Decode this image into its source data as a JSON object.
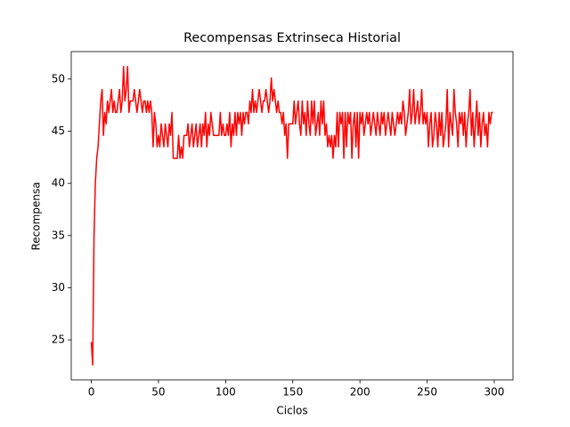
{
  "chart_data": {
    "type": "line",
    "title": "Recompensas Extrinseca Historial",
    "xlabel": "Ciclos",
    "ylabel": "Recompensa",
    "x": [
      0,
      1,
      2,
      3,
      4,
      5,
      6,
      7,
      8,
      9,
      10,
      11,
      12,
      13,
      14,
      15,
      16,
      17,
      18,
      19,
      20,
      21,
      22,
      23,
      24,
      25,
      26,
      27,
      28,
      29,
      30,
      31,
      32,
      33,
      34,
      35,
      36,
      37,
      38,
      39,
      40,
      41,
      42,
      43,
      44,
      45,
      46,
      47,
      48,
      49,
      50,
      51,
      52,
      53,
      54,
      55,
      56,
      57,
      58,
      59,
      60,
      61,
      62,
      63,
      64,
      65,
      66,
      67,
      68,
      69,
      70,
      71,
      72,
      73,
      74,
      75,
      76,
      77,
      78,
      79,
      80,
      81,
      82,
      83,
      84,
      85,
      86,
      87,
      88,
      89,
      90,
      91,
      92,
      93,
      94,
      95,
      96,
      97,
      98,
      99,
      100,
      101,
      102,
      103,
      104,
      105,
      106,
      107,
      108,
      109,
      110,
      111,
      112,
      113,
      114,
      115,
      116,
      117,
      118,
      119,
      120,
      121,
      122,
      123,
      124,
      125,
      126,
      127,
      128,
      129,
      130,
      131,
      132,
      133,
      134,
      135,
      136,
      137,
      138,
      139,
      140,
      141,
      142,
      143,
      144,
      145,
      146,
      147,
      148,
      149,
      150,
      151,
      152,
      153,
      154,
      155,
      156,
      157,
      158,
      159,
      160,
      161,
      162,
      163,
      164,
      165,
      166,
      167,
      168,
      169,
      170,
      171,
      172,
      173,
      174,
      175,
      176,
      177,
      178,
      179,
      180,
      181,
      182,
      183,
      184,
      185,
      186,
      187,
      188,
      189,
      190,
      191,
      192,
      193,
      194,
      195,
      196,
      197,
      198,
      199,
      200,
      201,
      202,
      203,
      204,
      205,
      206,
      207,
      208,
      209,
      210,
      211,
      212,
      213,
      214,
      215,
      216,
      217,
      218,
      219,
      220,
      221,
      222,
      223,
      224,
      225,
      226,
      227,
      228,
      229,
      230,
      231,
      232,
      233,
      234,
      235,
      236,
      237,
      238,
      239,
      240,
      241,
      242,
      243,
      244,
      245,
      246,
      247,
      248,
      249,
      250,
      251,
      252,
      253,
      254,
      255,
      256,
      257,
      258,
      259,
      260,
      261,
      262,
      263,
      264,
      265,
      266,
      267,
      268,
      269,
      270,
      271,
      272,
      273,
      274,
      275,
      276,
      277,
      278,
      279,
      280,
      281,
      282,
      283,
      284,
      285,
      286,
      287,
      288,
      289,
      290,
      291,
      292,
      293,
      294,
      295,
      296,
      297,
      298,
      299
    ],
    "series": [
      {
        "color": "#ff0000",
        "values": [
          24.8,
          22.6,
          35.0,
          40.0,
          42.4,
          43.5,
          45.7,
          47.9,
          49.0,
          44.6,
          46.8,
          45.7,
          47.9,
          46.8,
          47.9,
          49.0,
          46.8,
          47.9,
          46.8,
          46.8,
          47.9,
          49.0,
          46.8,
          47.9,
          51.2,
          47.9,
          49.0,
          51.2,
          46.8,
          47.9,
          47.9,
          47.9,
          49.0,
          47.9,
          46.8,
          47.9,
          49.0,
          47.9,
          46.8,
          47.9,
          47.9,
          46.8,
          47.9,
          46.8,
          47.9,
          46.8,
          43.5,
          46.8,
          45.7,
          43.5,
          44.6,
          43.5,
          45.7,
          44.6,
          43.5,
          45.7,
          44.6,
          43.5,
          45.7,
          44.6,
          46.8,
          42.4,
          42.4,
          42.4,
          42.4,
          44.6,
          42.4,
          43.5,
          42.4,
          44.6,
          44.6,
          44.6,
          45.7,
          43.5,
          44.6,
          45.7,
          43.5,
          44.6,
          45.7,
          43.5,
          44.6,
          45.7,
          43.5,
          45.7,
          44.6,
          46.8,
          43.5,
          45.7,
          44.6,
          46.8,
          45.7,
          44.6,
          44.6,
          44.6,
          44.6,
          44.6,
          46.8,
          44.6,
          45.7,
          44.6,
          44.6,
          45.7,
          44.6,
          46.8,
          43.5,
          45.7,
          44.6,
          46.8,
          44.6,
          46.8,
          45.7,
          46.8,
          44.6,
          46.8,
          45.7,
          46.8,
          46.8,
          45.7,
          47.9,
          46.8,
          49.0,
          46.8,
          47.9,
          46.8,
          47.9,
          49.0,
          47.9,
          46.8,
          47.9,
          47.9,
          49.0,
          47.9,
          46.8,
          47.9,
          50.1,
          47.9,
          49.0,
          47.9,
          46.8,
          47.9,
          46.8,
          46.8,
          45.7,
          46.8,
          44.6,
          45.7,
          42.4,
          45.7,
          45.7,
          45.7,
          45.7,
          47.9,
          45.7,
          46.8,
          47.9,
          45.7,
          44.6,
          47.9,
          45.7,
          46.8,
          44.6,
          47.9,
          45.7,
          44.6,
          47.9,
          45.7,
          47.9,
          44.6,
          45.7,
          46.8,
          44.6,
          47.9,
          45.7,
          47.9,
          44.6,
          45.7,
          43.5,
          44.6,
          43.5,
          44.6,
          42.4,
          44.6,
          43.5,
          46.8,
          43.5,
          46.8,
          45.7,
          46.8,
          42.4,
          46.8,
          43.5,
          46.8,
          45.7,
          46.8,
          42.4,
          45.7,
          46.8,
          43.5,
          46.8,
          42.4,
          46.8,
          45.7,
          46.8,
          44.6,
          45.7,
          46.8,
          45.7,
          46.8,
          44.6,
          45.7,
          46.8,
          45.7,
          44.6,
          46.8,
          45.7,
          44.6,
          46.8,
          45.7,
          46.8,
          44.6,
          45.7,
          46.8,
          45.7,
          44.6,
          46.8,
          45.7,
          44.6,
          45.7,
          46.8,
          45.7,
          46.8,
          45.7,
          47.9,
          46.8,
          44.6,
          45.7,
          46.8,
          49.0,
          45.7,
          46.8,
          49.0,
          45.7,
          46.8,
          47.9,
          45.7,
          46.8,
          49.0,
          45.7,
          46.8,
          45.7,
          46.8,
          43.5,
          45.7,
          46.8,
          43.5,
          44.6,
          46.8,
          45.7,
          43.5,
          46.8,
          44.6,
          46.8,
          43.5,
          44.6,
          45.7,
          49.0,
          43.5,
          46.8,
          45.7,
          44.6,
          49.0,
          46.8,
          45.7,
          43.5,
          46.8,
          45.7,
          46.8,
          44.6,
          46.8,
          43.5,
          45.7,
          46.8,
          49.0,
          44.6,
          46.8,
          43.5,
          45.7,
          47.9,
          44.6,
          46.8,
          43.5,
          45.7,
          46.8,
          44.6,
          45.7,
          43.5,
          46.8,
          45.7,
          46.8,
          46.8
        ]
      }
    ],
    "xlim": [
      -14.95,
      313.95
    ],
    "xticks": [
      0,
      50,
      100,
      150,
      200,
      250,
      300
    ],
    "ylim": [
      21.17,
      52.63
    ],
    "yticks": [
      25,
      30,
      35,
      40,
      45,
      50
    ]
  }
}
